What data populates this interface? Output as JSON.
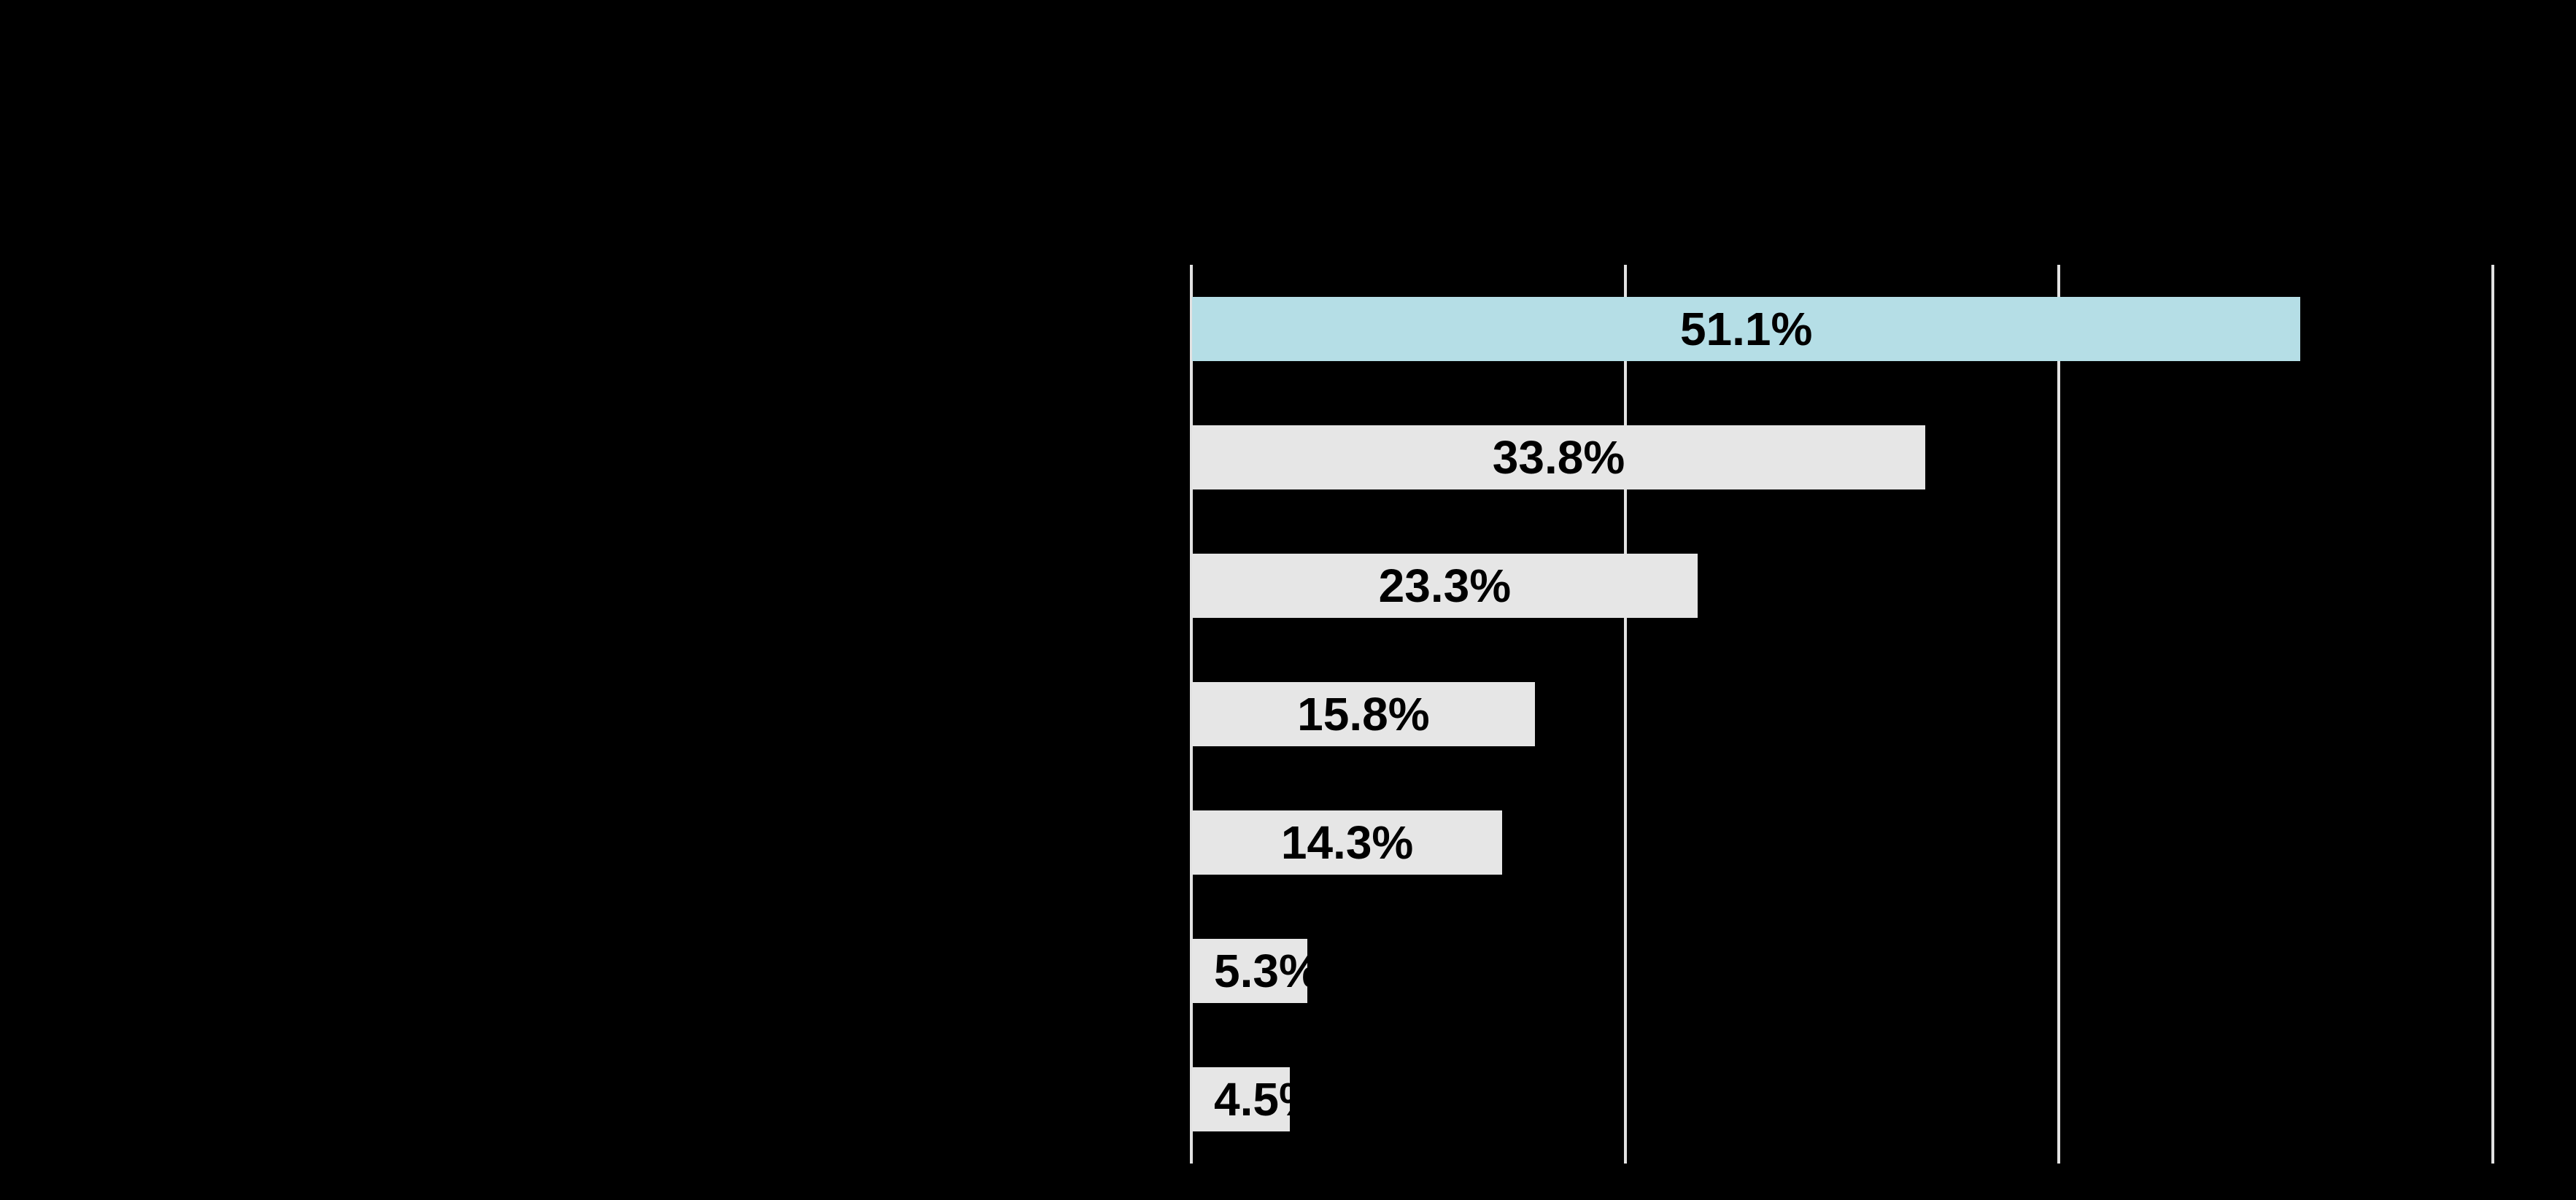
{
  "chart_data": {
    "type": "bar",
    "orientation": "horizontal",
    "title": "",
    "values": [
      51.1,
      33.8,
      23.3,
      15.8,
      14.3,
      5.3,
      4.5
    ],
    "bar_labels": [
      "51.1%",
      "33.8%",
      "23.3%",
      "15.8%",
      "14.3%",
      "5.3%",
      "4.5%"
    ],
    "highlight_index": 0,
    "xlim": [
      0,
      60
    ],
    "gridline_values": [
      0,
      20,
      40,
      60
    ],
    "grid": "vertical-only",
    "legend_position": "none",
    "axis_tick_labels_visible": false,
    "category_labels_visible": false,
    "colors": {
      "background": "#000000",
      "bar_default": "#e6e6e6",
      "bar_highlight": "#b5dee6",
      "bar_label_text": "#000000",
      "gridline": "#e2e2e2"
    }
  }
}
